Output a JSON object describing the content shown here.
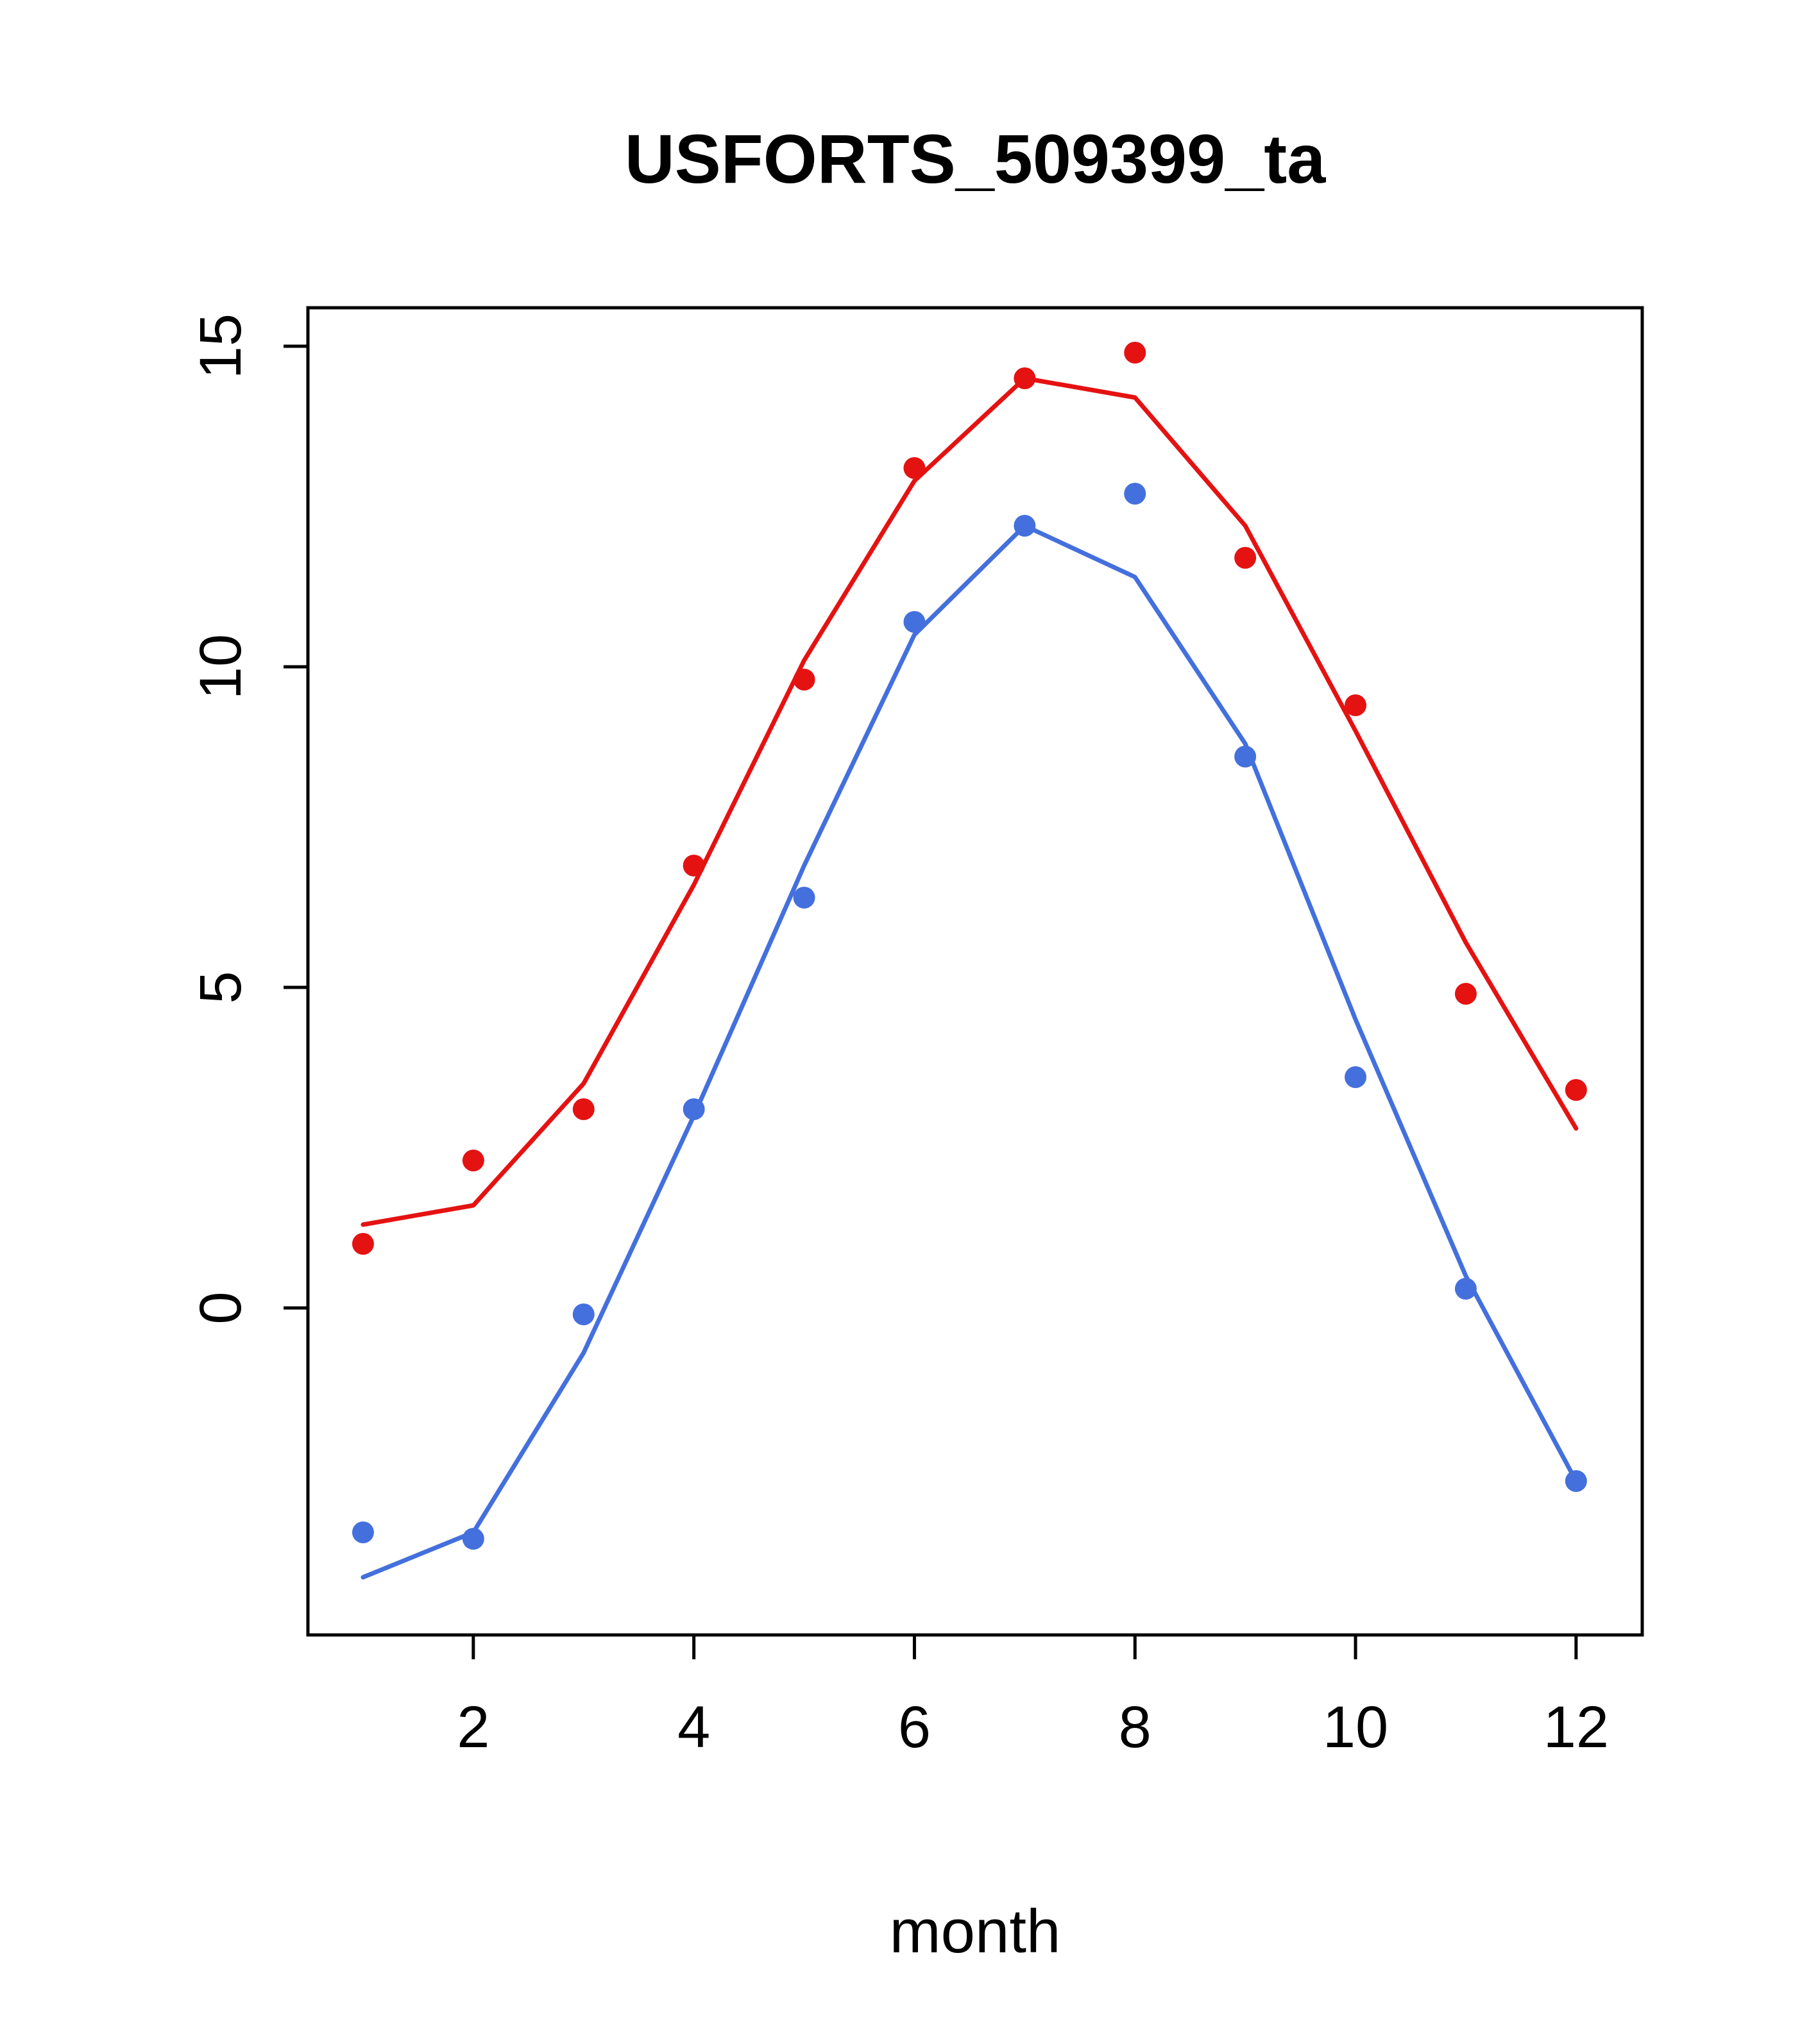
{
  "chart_data": {
    "type": "line",
    "title": "USFORTS_509399_ta",
    "xlabel": "month",
    "ylabel": "",
    "x": [
      1,
      2,
      3,
      4,
      5,
      6,
      7,
      8,
      9,
      10,
      11,
      12
    ],
    "xticks": [
      2,
      4,
      6,
      8,
      10,
      12
    ],
    "yticks": [
      0,
      5,
      10,
      15
    ],
    "xlim": [
      0.5,
      12.6
    ],
    "ylim": [
      -5.1,
      15.6
    ],
    "grid": false,
    "legend": "none",
    "colors": {
      "red": "#e51212",
      "blue": "#4470dd"
    },
    "series": [
      {
        "name": "red-line",
        "style": "line",
        "color": "red",
        "values": [
          1.3,
          1.6,
          3.5,
          6.6,
          10.1,
          12.9,
          14.5,
          14.2,
          12.2,
          9.0,
          5.7,
          2.8
        ]
      },
      {
        "name": "blue-line",
        "style": "line",
        "color": "blue",
        "values": [
          -4.2,
          -3.5,
          -0.7,
          3.0,
          6.9,
          10.5,
          12.2,
          11.4,
          8.8,
          4.5,
          0.5,
          -2.7
        ]
      },
      {
        "name": "red-points",
        "style": "points",
        "color": "red",
        "values": [
          1.0,
          2.3,
          3.1,
          6.9,
          9.8,
          13.1,
          14.5,
          14.9,
          11.7,
          9.4,
          4.9,
          3.4
        ]
      },
      {
        "name": "blue-points",
        "style": "points",
        "color": "blue",
        "values": [
          -3.5,
          -3.6,
          -0.1,
          3.1,
          6.4,
          10.7,
          12.2,
          12.7,
          8.6,
          3.6,
          0.3,
          -2.7
        ]
      }
    ]
  }
}
